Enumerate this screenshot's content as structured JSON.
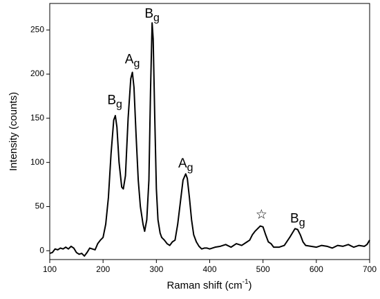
{
  "chart_data": {
    "type": "line",
    "xlabel": {
      "text": "Raman shift (cm",
      "sup": "-1",
      "after": ")"
    },
    "ylabel": "Intensity (counts)",
    "color": "#000000",
    "xlim": [
      100,
      700
    ],
    "ylim": [
      -10,
      280
    ],
    "xticks": [
      100,
      200,
      300,
      400,
      500,
      600,
      700
    ],
    "yticks": [
      0,
      50,
      100,
      150,
      200,
      250
    ],
    "grid": false,
    "x": [
      100,
      105,
      110,
      115,
      120,
      125,
      130,
      135,
      140,
      145,
      150,
      155,
      160,
      165,
      170,
      175,
      180,
      185,
      190,
      195,
      200,
      205,
      210,
      215,
      220,
      223,
      226,
      230,
      235,
      238,
      242,
      247,
      252,
      255,
      258,
      262,
      266,
      270,
      275,
      278,
      282,
      286,
      289,
      292,
      294,
      297,
      300,
      303,
      307,
      310,
      315,
      320,
      325,
      330,
      335,
      340,
      345,
      350,
      355,
      358,
      362,
      366,
      370,
      375,
      380,
      385,
      390,
      395,
      400,
      410,
      420,
      430,
      440,
      450,
      460,
      470,
      475,
      480,
      485,
      490,
      495,
      500,
      505,
      510,
      515,
      520,
      530,
      540,
      550,
      555,
      560,
      565,
      570,
      575,
      580,
      590,
      600,
      610,
      620,
      630,
      640,
      650,
      660,
      670,
      680,
      690,
      695,
      700
    ],
    "values": [
      -3,
      -2,
      2,
      1,
      3,
      2,
      4,
      2,
      5,
      3,
      -2,
      -4,
      -3,
      -6,
      -2,
      3,
      2,
      1,
      8,
      12,
      15,
      30,
      60,
      110,
      148,
      153,
      140,
      100,
      72,
      70,
      85,
      150,
      195,
      202,
      185,
      130,
      80,
      50,
      30,
      22,
      35,
      80,
      180,
      258,
      240,
      150,
      70,
      35,
      20,
      15,
      12,
      8,
      6,
      10,
      12,
      30,
      55,
      80,
      87,
      82,
      60,
      35,
      18,
      10,
      5,
      2,
      3,
      3,
      2,
      4,
      5,
      7,
      4,
      8,
      6,
      10,
      12,
      18,
      22,
      25,
      28,
      27,
      18,
      10,
      8,
      4,
      4,
      6,
      15,
      20,
      25,
      24,
      18,
      10,
      6,
      5,
      4,
      6,
      5,
      3,
      6,
      5,
      7,
      4,
      6,
      5,
      7,
      12
    ],
    "annotations": [
      {
        "text": "B",
        "sub": "g",
        "x": 222,
        "y": 170
      },
      {
        "text": "A",
        "sub": "g",
        "x": 255,
        "y": 216
      },
      {
        "text": "B",
        "sub": "g",
        "x": 292,
        "y": 268
      },
      {
        "text": "A",
        "sub": "g",
        "x": 355,
        "y": 98
      },
      {
        "text": "☆",
        "x": 497,
        "y": 40
      },
      {
        "text": "B",
        "sub": "g",
        "x": 565,
        "y": 36
      }
    ]
  }
}
